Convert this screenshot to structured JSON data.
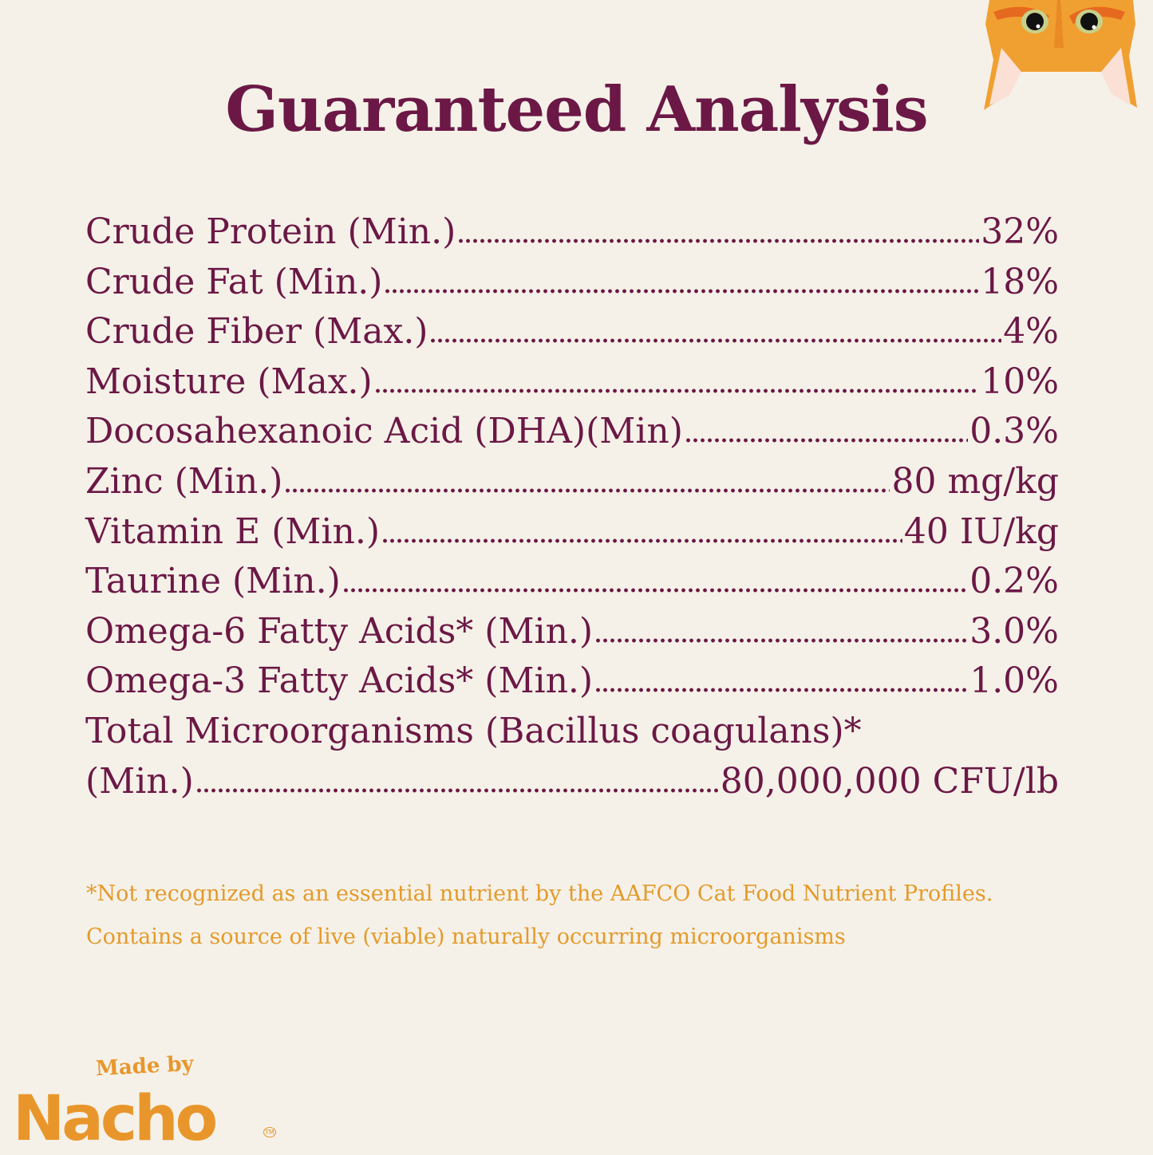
{
  "title": "Guaranteed Analysis",
  "items": [
    {
      "label": "Crude Protein (Min.)",
      "value": "32%"
    },
    {
      "label": "Crude Fat (Min.)",
      "value": "18%"
    },
    {
      "label": "Crude Fiber (Max.)",
      "value": "4%"
    },
    {
      "label": "Moisture (Max.)",
      "value": "10%"
    },
    {
      "label": "Docosahexanoic Acid (DHA)(Min)",
      "value": "0.3%"
    },
    {
      "label": "Zinc (Min.)",
      "value": "80 mg/kg"
    },
    {
      "label": "Vitamin E (Min.)",
      "value": "40 IU/kg"
    },
    {
      "label": "Taurine (Min.)",
      "value": "0.2%"
    },
    {
      "label": "Omega-6 Fatty Acids* (Min.)",
      "value": "3.0%"
    },
    {
      "label": "Omega-3 Fatty Acids* (Min.)",
      "value": "1.0%"
    },
    {
      "label_line1": "Total Microorganisms (Bacillus coagulans)*",
      "label_line2": "(Min.)",
      "value": "80,000,000 CFU/lb"
    }
  ],
  "notes": [
    "*Not recognized as an essential nutrient by the AAFCO Cat Food Nutrient Profiles.",
    "Contains a source of live (viable) naturally occurring microorganisms"
  ],
  "brand": {
    "made_by": "Made by",
    "name": "Nacho",
    "tm": "TM"
  },
  "colors": {
    "background": "#f5f1e8",
    "text": "#6b1846",
    "accent": "#e8962b"
  },
  "illustration": "cat-face-peeking-icon"
}
